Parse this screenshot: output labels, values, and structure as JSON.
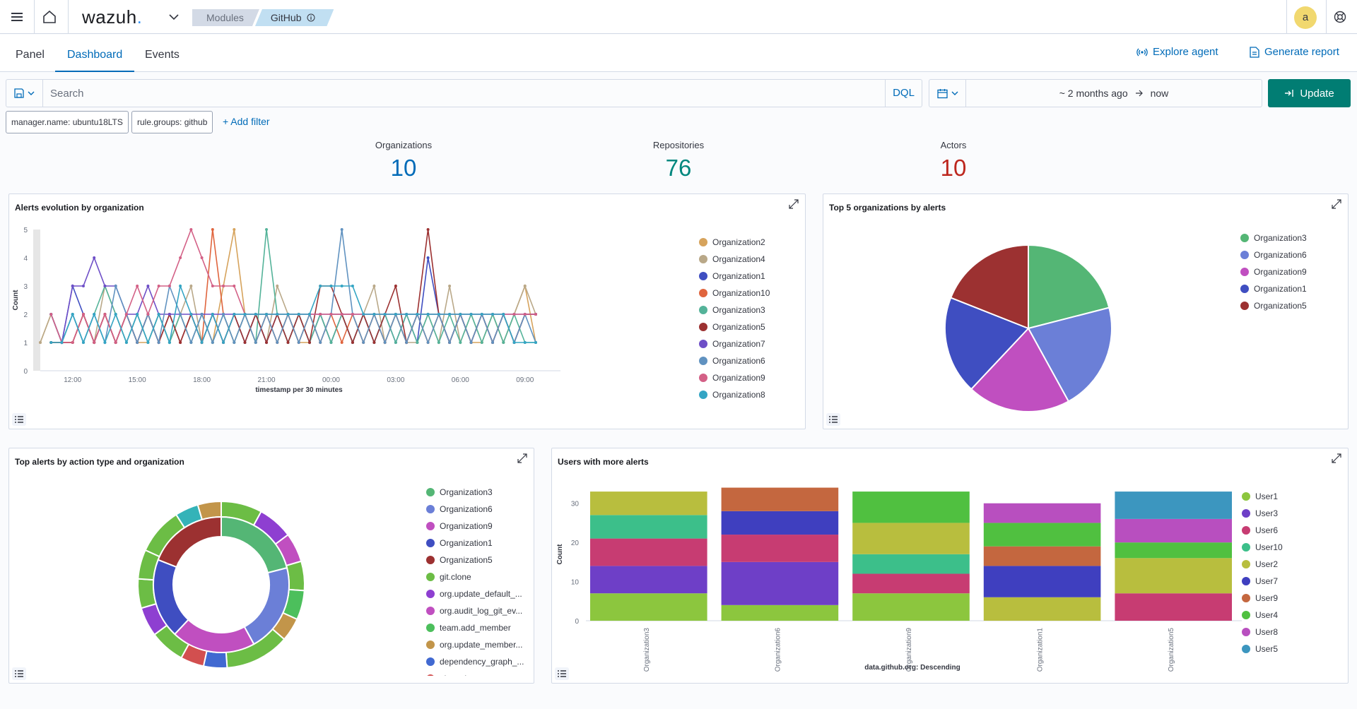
{
  "app": {
    "logo": "wazuh",
    "logo_dot": ".",
    "avatar_initial": "a"
  },
  "breadcrumbs": [
    {
      "label": "Modules"
    },
    {
      "label": "GitHub",
      "info_icon": "info-icon"
    }
  ],
  "tabs": [
    {
      "label": "Panel",
      "active": false
    },
    {
      "label": "Dashboard",
      "active": true
    },
    {
      "label": "Events",
      "active": false
    }
  ],
  "actions": {
    "explore_agent": "Explore agent",
    "generate_report": "Generate report"
  },
  "search": {
    "placeholder": "Search",
    "value": "",
    "language": "DQL"
  },
  "date": {
    "start": "~ 2 months ago",
    "end": "now",
    "update_label": "Update"
  },
  "filters": [
    {
      "label": "manager.name: ubuntu18LTS"
    },
    {
      "label": "rule.groups: github"
    }
  ],
  "add_filter": "+ Add filter",
  "metrics": [
    {
      "label": "Organizations",
      "value": "10",
      "color": "#3185fc"
    },
    {
      "label": "Repositories",
      "value": "76",
      "color": "#00a69b"
    },
    {
      "label": "Actors",
      "value": "10",
      "color": "#bd271e"
    }
  ],
  "panels": {
    "alerts_evolution": "Alerts evolution by organization",
    "top5": "Top 5 organizations by alerts",
    "top_alerts": "Top alerts by action type and organization",
    "users": "Users with more alerts"
  },
  "chart_data": [
    {
      "type": "line",
      "title": "Alerts evolution by organization",
      "xlabel": "timestamp per 30 minutes",
      "ylabel": "Count",
      "ylim": [
        0,
        5
      ],
      "yticks": [
        "0",
        "1",
        "2",
        "3",
        "4",
        "5"
      ],
      "xticks": [
        "12:00",
        "15:00",
        "18:00",
        "21:00",
        "00:00",
        "03:00",
        "06:00",
        "09:00"
      ],
      "x_hours": [
        10.5,
        11,
        11.5,
        12,
        12.5,
        13,
        13.5,
        14,
        14.5,
        15,
        15.5,
        16,
        16.5,
        17,
        17.5,
        18,
        18.5,
        19,
        19.5,
        20,
        20.5,
        21,
        21.5,
        22,
        22.5,
        23,
        23.5,
        24,
        24.5,
        25,
        25.5,
        26,
        26.5,
        27,
        27.5,
        28,
        28.5,
        29,
        29.5,
        30,
        30.5,
        31,
        31.5,
        32,
        32.5,
        33,
        33.5
      ],
      "series": [
        {
          "name": "Organization2",
          "color": "#d6a35c",
          "values": [
            1,
            2,
            1,
            1,
            2,
            1,
            2,
            1,
            2,
            1,
            1,
            2,
            1,
            2,
            1,
            2,
            1,
            3,
            5,
            2,
            1,
            2,
            1,
            2,
            1,
            1,
            2,
            1,
            2,
            2,
            1,
            2,
            1,
            2,
            1,
            2,
            1,
            2,
            1,
            2,
            1,
            1,
            2,
            1,
            2,
            3,
            1
          ]
        },
        {
          "name": "Organization4",
          "color": "#b9a888",
          "values": [
            1,
            2,
            1,
            1,
            2,
            1,
            3,
            2,
            1,
            2,
            1,
            2,
            1,
            2,
            3,
            1,
            2,
            1,
            2,
            1,
            2,
            1,
            3,
            2,
            1,
            2,
            1,
            2,
            2,
            1,
            2,
            3,
            1,
            2,
            1,
            1,
            2,
            1,
            3,
            1,
            2,
            1,
            2,
            1,
            2,
            3,
            2
          ]
        },
        {
          "name": "Organization1",
          "color": "#3f4ec1",
          "values": [
            null,
            2,
            1,
            3,
            2,
            1,
            2,
            1,
            2,
            1,
            2,
            1,
            2,
            1,
            2,
            1,
            2,
            1,
            2,
            1,
            2,
            1,
            2,
            1,
            2,
            1,
            2,
            1,
            2,
            1,
            2,
            1,
            2,
            1,
            2,
            1,
            4,
            2,
            1,
            2,
            1,
            2,
            1,
            2,
            1,
            2,
            2
          ]
        },
        {
          "name": "Organization10",
          "color": "#e0653e",
          "values": [
            null,
            1,
            1,
            1,
            2,
            1,
            2,
            1,
            2,
            1,
            2,
            1,
            2,
            1,
            2,
            1,
            5,
            2,
            1,
            2,
            1,
            2,
            1,
            2,
            1,
            2,
            1,
            2,
            1,
            2,
            1,
            2,
            1,
            2,
            1,
            2,
            1,
            2,
            1,
            2,
            1,
            2,
            1,
            2,
            1,
            2,
            2
          ]
        },
        {
          "name": "Organization3",
          "color": "#54b399",
          "values": [
            null,
            1,
            1,
            2,
            1,
            2,
            3,
            2,
            1,
            2,
            1,
            2,
            1,
            2,
            1,
            2,
            1,
            2,
            1,
            2,
            1,
            5,
            2,
            1,
            2,
            1,
            2,
            1,
            2,
            1,
            2,
            1,
            2,
            1,
            2,
            1,
            2,
            1,
            2,
            1,
            2,
            1,
            2,
            1,
            2,
            1,
            1
          ]
        },
        {
          "name": "Organization5",
          "color": "#9c3131",
          "values": [
            null,
            1,
            1,
            1,
            2,
            1,
            2,
            1,
            2,
            1,
            2,
            1,
            2,
            1,
            2,
            1,
            2,
            1,
            2,
            1,
            2,
            1,
            2,
            1,
            2,
            1,
            3,
            3,
            2,
            1,
            2,
            1,
            2,
            3,
            1,
            2,
            5,
            2,
            1,
            2,
            1,
            2,
            1,
            2,
            1,
            2,
            2
          ]
        },
        {
          "name": "Organization7",
          "color": "#6e4fc7",
          "values": [
            null,
            2,
            1,
            3,
            3,
            4,
            3,
            3,
            2,
            2,
            3,
            2,
            2,
            2,
            2,
            2,
            2,
            2,
            2,
            2,
            2,
            2,
            2,
            2,
            2,
            2,
            2,
            2,
            2,
            2,
            2,
            2,
            2,
            2,
            2,
            2,
            2,
            2,
            2,
            2,
            2,
            2,
            2,
            2,
            2,
            2,
            2
          ]
        },
        {
          "name": "Organization6",
          "color": "#6092c0",
          "values": [
            null,
            2,
            1,
            2,
            1,
            2,
            1,
            3,
            2,
            1,
            2,
            1,
            3,
            2,
            1,
            2,
            1,
            2,
            1,
            2,
            1,
            2,
            1,
            2,
            1,
            2,
            1,
            2,
            5,
            2,
            1,
            2,
            1,
            2,
            1,
            2,
            1,
            2,
            1,
            2,
            1,
            2,
            1,
            2,
            1,
            2,
            1
          ]
        },
        {
          "name": "Organization9",
          "color": "#d36086",
          "values": [
            null,
            2,
            1,
            1,
            2,
            1,
            2,
            1,
            2,
            3,
            2,
            3,
            3,
            4,
            5,
            4,
            3,
            3,
            3,
            2,
            2,
            2,
            2,
            2,
            2,
            2,
            2,
            2,
            2,
            2,
            2,
            2,
            2,
            2,
            2,
            2,
            2,
            2,
            2,
            2,
            2,
            2,
            2,
            2,
            2,
            2,
            2
          ]
        },
        {
          "name": "Organization8",
          "color": "#34a5c4",
          "values": [
            null,
            1,
            1,
            2,
            1,
            2,
            1,
            2,
            1,
            2,
            1,
            2,
            1,
            3,
            2,
            1,
            2,
            1,
            2,
            2,
            2,
            2,
            2,
            2,
            2,
            2,
            3,
            3,
            3,
            3,
            2,
            2,
            2,
            2,
            2,
            2,
            2,
            2,
            2,
            2,
            2,
            2,
            2,
            2,
            1,
            1,
            1
          ]
        }
      ]
    },
    {
      "type": "pie",
      "title": "Top 5 organizations by alerts",
      "slices": [
        {
          "label": "Organization3",
          "value": 21,
          "color": "#54b675"
        },
        {
          "label": "Organization6",
          "value": 21,
          "color": "#6b7fd7"
        },
        {
          "label": "Organization9",
          "value": 20,
          "color": "#c04fc0"
        },
        {
          "label": "Organization1",
          "value": 19,
          "color": "#3f4ec1"
        },
        {
          "label": "Organization5",
          "value": 19,
          "color": "#9c3131"
        }
      ]
    },
    {
      "type": "pie",
      "title": "Top alerts by action type and organization",
      "inner": [
        {
          "label": "Organization3",
          "value": 21,
          "color": "#54b675"
        },
        {
          "label": "Organization6",
          "value": 21,
          "color": "#6b7fd7"
        },
        {
          "label": "Organization9",
          "value": 20,
          "color": "#c04fc0"
        },
        {
          "label": "Organization1",
          "value": 19,
          "color": "#3f4ec1"
        },
        {
          "label": "Organization5",
          "value": 19,
          "color": "#9c3131"
        }
      ],
      "outer": [
        {
          "value": 7,
          "color": "#6cbd45"
        },
        {
          "value": 6,
          "color": "#8e3fd1"
        },
        {
          "value": 5,
          "color": "#c04fc0"
        },
        {
          "value": 5,
          "color": "#6cbd45"
        },
        {
          "value": 5,
          "color": "#4cbf5c"
        },
        {
          "value": 4,
          "color": "#c2954a"
        },
        {
          "value": 11,
          "color": "#6cbd45"
        },
        {
          "value": 4,
          "color": "#4169d1"
        },
        {
          "value": 4,
          "color": "#d24f4f"
        },
        {
          "value": 6,
          "color": "#6cbd45"
        },
        {
          "value": 5,
          "color": "#8e3fd1"
        },
        {
          "value": 5,
          "color": "#6cbd45"
        },
        {
          "value": 5,
          "color": "#6cbd45"
        },
        {
          "value": 8,
          "color": "#6cbd45"
        },
        {
          "value": 4,
          "color": "#34b3b8"
        },
        {
          "value": 4,
          "color": "#c2954a"
        }
      ],
      "legend": [
        {
          "label": "Organization3",
          "color": "#54b675"
        },
        {
          "label": "Organization6",
          "color": "#6b7fd7"
        },
        {
          "label": "Organization9",
          "color": "#c04fc0"
        },
        {
          "label": "Organization1",
          "color": "#3f4ec1"
        },
        {
          "label": "Organization5",
          "color": "#9c3131"
        },
        {
          "label": "git.clone",
          "color": "#6cbd45"
        },
        {
          "label": "org.update_default_...",
          "color": "#8e3fd1"
        },
        {
          "label": "org.audit_log_git_ev...",
          "color": "#c04fc0"
        },
        {
          "label": "team.add_member",
          "color": "#4cbf5c"
        },
        {
          "label": "org.update_member...",
          "color": "#c2954a"
        },
        {
          "label": "dependency_graph_...",
          "color": "#4169d1"
        },
        {
          "label": "git.push",
          "color": "#d24f4f"
        }
      ]
    },
    {
      "type": "bar",
      "stacked": true,
      "title": "Users with more alerts",
      "xlabel": "data.github.org: Descending",
      "ylabel": "Count",
      "ylim": [
        0,
        35
      ],
      "yticks": [
        "0",
        "10",
        "20",
        "30"
      ],
      "categories": [
        "Organization3",
        "Organization6",
        "Organization9",
        "Organization1",
        "Organization5"
      ],
      "series": [
        {
          "name": "User1",
          "color": "#8cc63e",
          "values": [
            7,
            4,
            7,
            0,
            0
          ]
        },
        {
          "name": "User3",
          "color": "#6e3fc7",
          "values": [
            7,
            11,
            0,
            0,
            0
          ]
        },
        {
          "name": "User6",
          "color": "#c73c72",
          "values": [
            7,
            7,
            5,
            0,
            7
          ]
        },
        {
          "name": "User10",
          "color": "#3cbf8a",
          "values": [
            6,
            0,
            5,
            0,
            0
          ]
        },
        {
          "name": "User2",
          "color": "#b8be3e",
          "values": [
            6,
            0,
            8,
            6,
            9
          ]
        },
        {
          "name": "User7",
          "color": "#3f3fbf",
          "values": [
            0,
            6,
            0,
            8,
            0
          ]
        },
        {
          "name": "User9",
          "color": "#c4673f",
          "values": [
            0,
            6,
            0,
            5,
            0
          ]
        },
        {
          "name": "User4",
          "color": "#50c040",
          "values": [
            0,
            0,
            8,
            6,
            4
          ]
        },
        {
          "name": "User8",
          "color": "#b84fbf",
          "values": [
            0,
            0,
            0,
            5,
            6
          ]
        },
        {
          "name": "User5",
          "color": "#3c96bf",
          "values": [
            0,
            0,
            0,
            0,
            7
          ]
        }
      ]
    }
  ]
}
